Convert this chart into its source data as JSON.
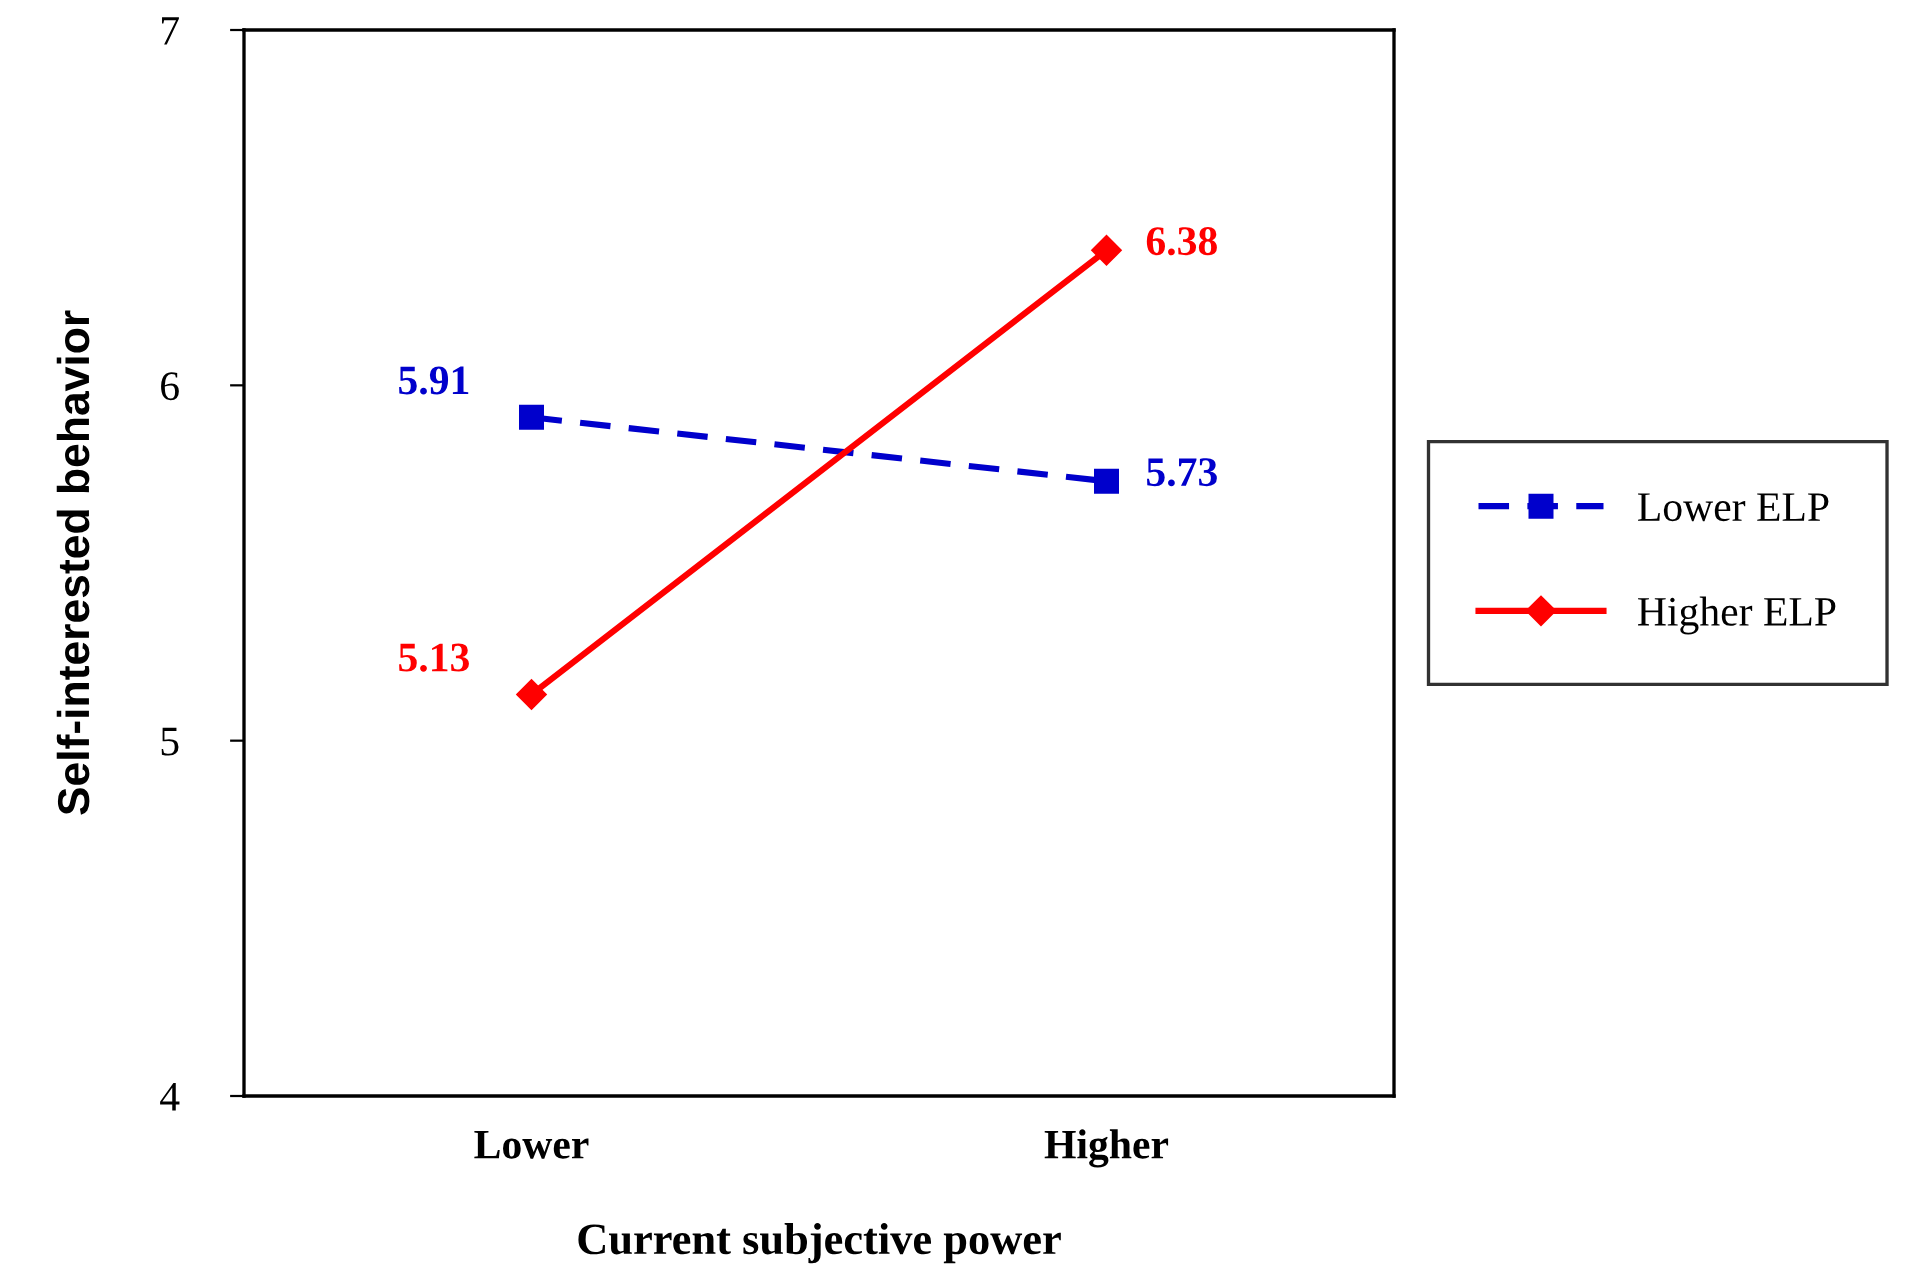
{
  "chart_data": {
    "type": "line",
    "xlabel": "Current subjective power",
    "ylabel": "Self-interested behavior",
    "categories": [
      "Lower",
      "Higher"
    ],
    "series": [
      {
        "name": "Lower ELP",
        "color": "#0000cc",
        "values": [
          5.91,
          5.73
        ],
        "line_style": "dashed",
        "marker": "square"
      },
      {
        "name": "Higher ELP",
        "color": "#ff0000",
        "values": [
          5.13,
          6.38
        ],
        "line_style": "solid",
        "marker": "diamond"
      }
    ],
    "ylim": [
      4,
      7
    ],
    "yticks": [
      4,
      5,
      6,
      7
    ],
    "grid": false,
    "legend": "right",
    "data_labels": true
  }
}
